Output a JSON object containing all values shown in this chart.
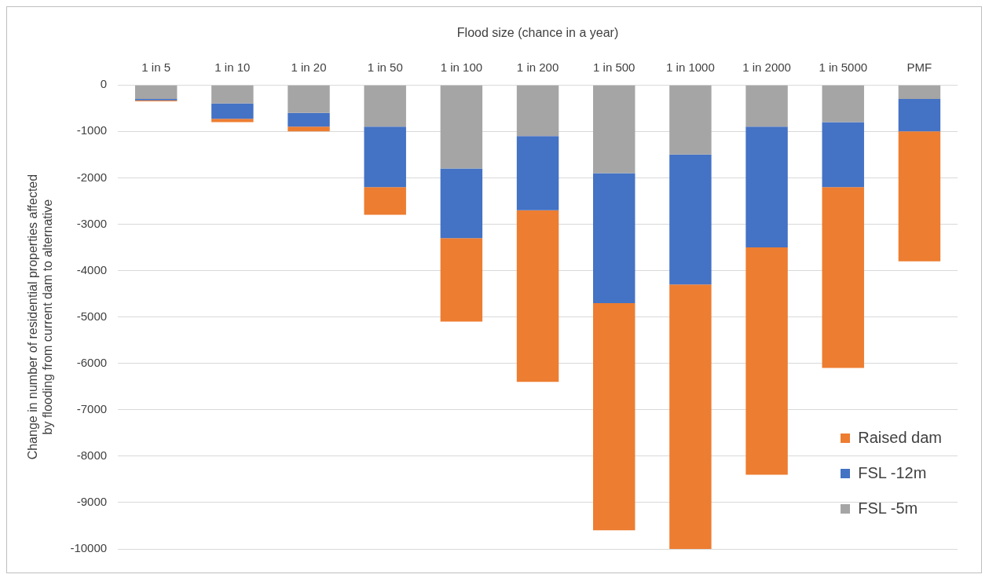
{
  "chart_data": {
    "type": "bar",
    "stacked": true,
    "xlabel": "Flood size (chance in a year)",
    "ylabel": "Change in number of residential properties affected by flooding from current dam to alternative",
    "categories": [
      "1 in 5",
      "1 in 10",
      "1 in 20",
      "1 in 50",
      "1 in 100",
      "1 in 200",
      "1 in 500",
      "1 in 1000",
      "1 in 2000",
      "1 in 5000",
      "PMF"
    ],
    "series": [
      {
        "name": "FSL -5m",
        "color": "#a5a5a5",
        "values": [
          -300,
          -400,
          -600,
          -900,
          -1800,
          -1100,
          -1900,
          -1500,
          -900,
          -800,
          -300
        ]
      },
      {
        "name": "FSL -12m",
        "color": "#4472c4",
        "values": [
          -30,
          -330,
          -300,
          -1300,
          -1500,
          -1600,
          -2800,
          -2800,
          -2600,
          -1400,
          -700
        ]
      },
      {
        "name": "Raised dam",
        "color": "#ed7d31",
        "values": [
          -20,
          -70,
          -100,
          -600,
          -1800,
          -3700,
          -4900,
          -5700,
          -4900,
          -3900,
          -2800
        ]
      }
    ],
    "ylim": [
      -10000,
      0
    ],
    "yticks": [
      -10000,
      -9000,
      -8000,
      -7000,
      -6000,
      -5000,
      -4000,
      -3000,
      -2000,
      -1000,
      0
    ],
    "grid": "y",
    "legend": "bottom right"
  }
}
